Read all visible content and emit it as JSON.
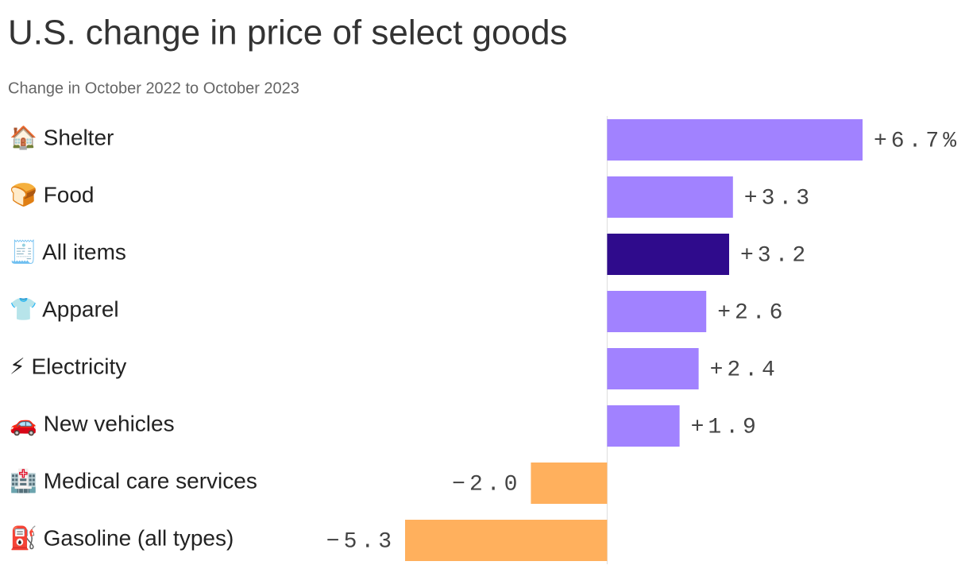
{
  "chart_data": {
    "type": "bar",
    "orientation": "horizontal",
    "title": "U.S. change in price of select goods",
    "subtitle": "Change in October 2022 to October 2023",
    "categories": [
      "🏠 Shelter",
      "🍞 Food",
      "🧾 All items",
      "👕 Apparel",
      "⚡ Electricity",
      "🚗 New vehicles",
      "🏥 Medical care services",
      "⛽ Gasoline (all types)"
    ],
    "values": [
      6.7,
      3.3,
      3.2,
      2.6,
      2.4,
      1.9,
      -2.0,
      -5.3
    ],
    "value_labels": [
      "+6.7%",
      "+3.3",
      "+3.2",
      "+2.6",
      "+2.4",
      "+1.9",
      "−2.0",
      "−5.3"
    ],
    "colors": [
      "#a182ff",
      "#a182ff",
      "#2f0b8c",
      "#a182ff",
      "#a182ff",
      "#a182ff",
      "#ffb05d",
      "#ffb05d"
    ]
  }
}
